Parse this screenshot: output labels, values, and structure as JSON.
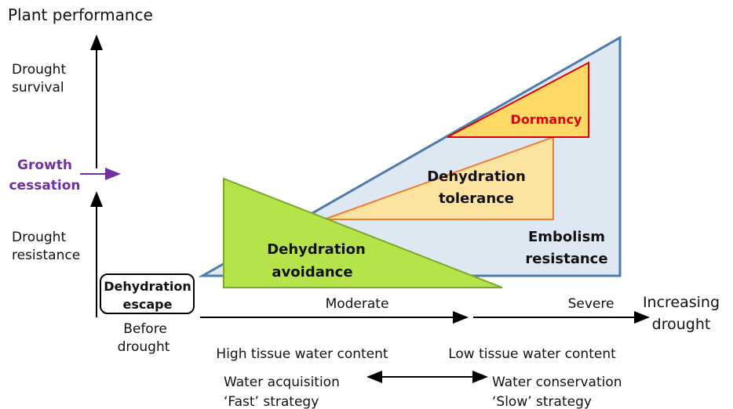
{
  "title": "Plant performance",
  "y_labels": {
    "survival": [
      "Drought",
      "survival"
    ],
    "cessation": [
      "Growth",
      "cessation"
    ],
    "resistance": [
      "Drought",
      "resistance"
    ]
  },
  "escape": [
    "Dehydration",
    "escape"
  ],
  "before": [
    "Before",
    "drought"
  ],
  "x_labels": {
    "moderate": "Moderate",
    "severe": "Severe",
    "increasing": [
      "Increasing",
      "drought"
    ]
  },
  "strategies": {
    "embolism": [
      "Embolism",
      "resistance"
    ],
    "tolerance": [
      "Dehydration",
      "tolerance"
    ],
    "dormancy": "Dormancy",
    "avoidance": [
      "Dehydration",
      "avoidance"
    ]
  },
  "bottom": {
    "high": "High tissue water content",
    "low": "Low tissue water content",
    "acquisition": [
      "Water acquisition",
      "‘Fast’ strategy"
    ],
    "conservation": [
      "Water conservation",
      "‘Slow’ strategy"
    ]
  }
}
